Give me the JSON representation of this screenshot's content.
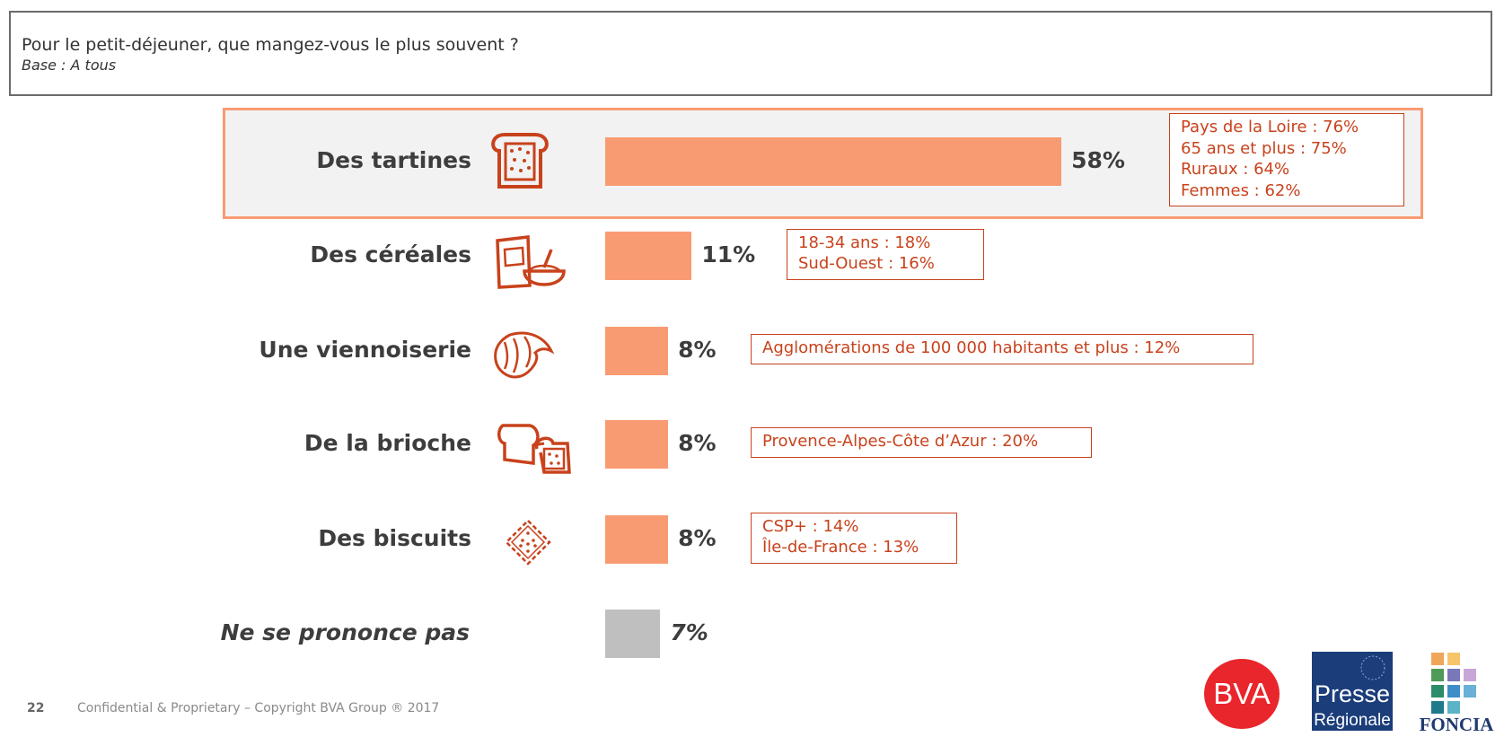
{
  "header": {
    "question": "Pour le petit-déjeuner, que mangez-vous le plus souvent ?",
    "base": "Base : A tous"
  },
  "chart_data": {
    "type": "bar",
    "orientation": "horizontal",
    "categories": [
      "Des tartines",
      "Des céréales",
      "Une viennoiserie",
      "De la brioche",
      "Des biscuits",
      "Ne se prononce pas"
    ],
    "values": [
      58,
      11,
      8,
      8,
      8,
      7
    ],
    "value_labels": [
      "58%",
      "11%",
      "8%",
      "8%",
      "8%",
      "7%"
    ],
    "unit": "%",
    "bar_colors": [
      "#f99b72",
      "#f99b72",
      "#f99b72",
      "#f99b72",
      "#f99b72",
      "#bfbfbf"
    ],
    "icons": [
      "toast-icon",
      "cereal-icon",
      "croissant-icon",
      "brioche-icon",
      "biscuit-icon",
      ""
    ],
    "annotations": [
      [
        "Pays de la Loire : 76%",
        "65 ans et plus : 75%",
        "Ruraux : 64%",
        "Femmes : 62%"
      ],
      [
        "18-34 ans : 18%",
        "Sud-Ouest : 16%"
      ],
      [
        "Agglomérations de 100 000 habitants et plus : 12%"
      ],
      [
        "Provence-Alpes-Côte d’Azur : 20%"
      ],
      [
        "CSP+ : 14%",
        "Île-de-France : 13%"
      ],
      []
    ],
    "highlighted_category": "Des tartines"
  },
  "colors": {
    "accent": "#f99b72",
    "annotation": "#c8421c",
    "neutral_bar": "#bfbfbf",
    "highlight_bg": "#f2f2f2"
  },
  "footer": {
    "page_number": "22",
    "copyright": "Confidential & Proprietary – Copyright BVA Group ®  2017"
  },
  "logos": {
    "bva": "BVA",
    "presse_line1": "Presse",
    "presse_line2": "Régionale",
    "foncia": "FONCIA"
  }
}
